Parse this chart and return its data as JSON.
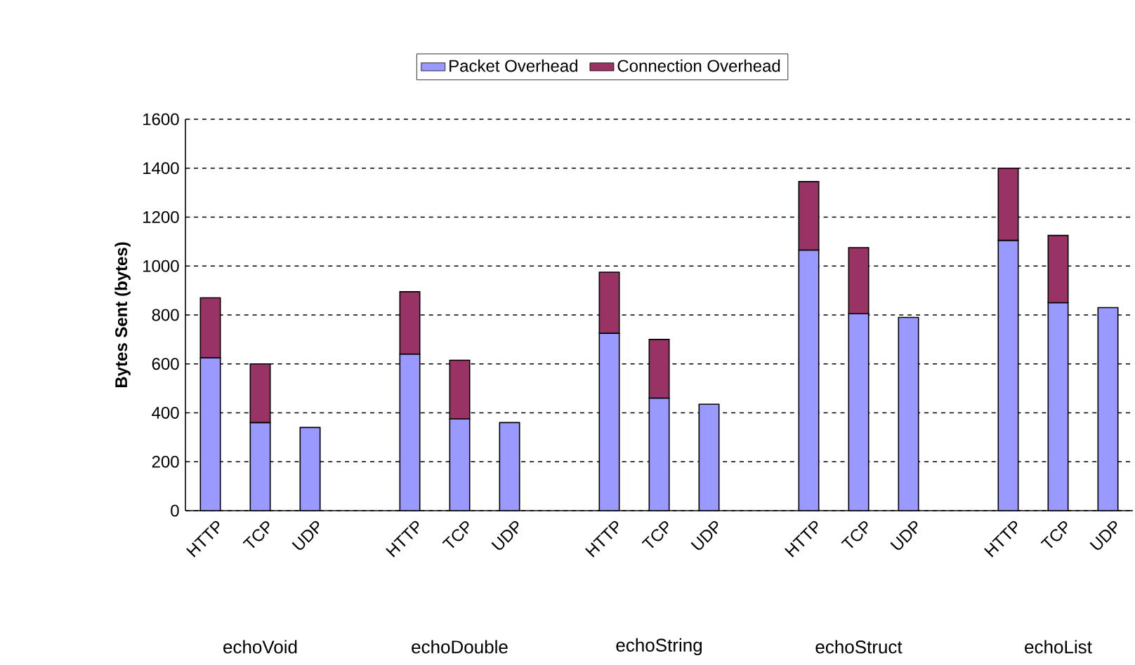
{
  "chart_data": {
    "type": "bar",
    "stacked": true,
    "ylabel": "Bytes Sent (bytes)",
    "categories": [
      "HTTP",
      "TCP",
      "UDP",
      null,
      "HTTP",
      "TCP",
      "UDP",
      null,
      "HTTP",
      "TCP",
      "UDP",
      null,
      "HTTP",
      "TCP",
      "UDP",
      null,
      "HTTP",
      "TCP",
      "UDP"
    ],
    "series": [
      {
        "name": "Packet Overhead",
        "color": "#9999ff",
        "values": [
          625,
          360,
          340,
          null,
          640,
          375,
          360,
          null,
          725,
          460,
          435,
          null,
          1065,
          805,
          790,
          null,
          1105,
          850,
          830
        ]
      },
      {
        "name": "Connection Overhead",
        "color": "#993366",
        "values": [
          245,
          240,
          null,
          null,
          255,
          240,
          null,
          null,
          250,
          240,
          null,
          null,
          280,
          270,
          null,
          null,
          295,
          275,
          null
        ]
      }
    ],
    "annotations": [
      "echoVoid",
      "echoDouble",
      "echoString",
      "echoStruct",
      "echoList"
    ],
    "ylim": [
      0,
      1600
    ],
    "yticks": [
      0,
      200,
      400,
      600,
      800,
      1000,
      1200,
      1400,
      1600
    ],
    "grid": "y",
    "legend": "top"
  }
}
